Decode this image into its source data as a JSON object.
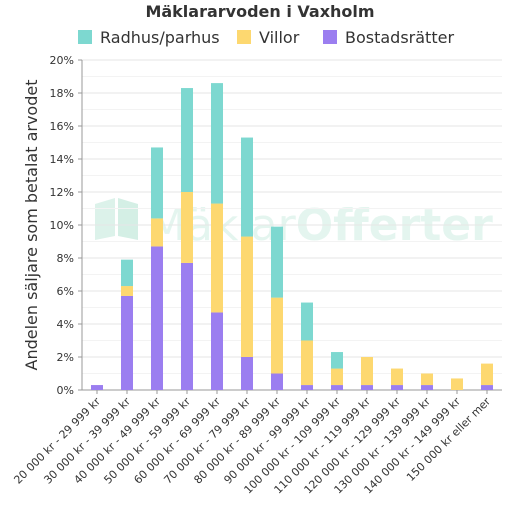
{
  "watermark": {
    "text_light": "Mäklar",
    "text_bold": "Offerter"
  },
  "chart_data": {
    "type": "bar",
    "stacked": true,
    "title": "Mäklararvoden i Vaxholm",
    "xlabel": "",
    "ylabel": "Andelen säljare som betalat arvodet",
    "ylim": [
      0,
      20
    ],
    "ytick_labels": [
      "0%",
      "2%",
      "4%",
      "6%",
      "8%",
      "10%",
      "12%",
      "14%",
      "16%",
      "18%",
      "20%"
    ],
    "grid": true,
    "legend_position": "top",
    "categories": [
      "20 000 kr - 29 999 kr",
      "30 000 kr - 39 999 kr",
      "40 000 kr - 49 999 kr",
      "50 000 kr - 59 999 kr",
      "60 000 kr - 69 999 kr",
      "70 000 kr - 79 999 kr",
      "80 000 kr - 89 999 kr",
      "90 000 kr - 99 999 kr",
      "100 000 kr - 109 999 kr",
      "110 000 kr - 119 999 kr",
      "120 000 kr - 129 999 kr",
      "130 000 kr - 139 999 kr",
      "140 000 kr - 149 999 kr",
      "150 000 kr eller mer"
    ],
    "series": [
      {
        "name": "Bostadsrätter",
        "color": "#9b7ef0",
        "values": [
          0.3,
          5.7,
          8.7,
          7.7,
          4.7,
          2.0,
          1.0,
          0.3,
          0.3,
          0.3,
          0.3,
          0.3,
          0.0,
          0.3
        ]
      },
      {
        "name": "Villor",
        "color": "#fdd870",
        "values": [
          0.0,
          0.6,
          1.7,
          4.3,
          6.6,
          7.3,
          4.6,
          2.7,
          1.0,
          1.7,
          1.0,
          0.7,
          0.7,
          1.3
        ]
      },
      {
        "name": "Radhus/parhus",
        "color": "#7dd8d0",
        "values": [
          0.0,
          1.6,
          4.3,
          6.3,
          7.3,
          6.0,
          4.3,
          2.3,
          1.0,
          0.0,
          0.0,
          0.0,
          0.0,
          0.0
        ]
      }
    ],
    "legend_order": [
      "Radhus/parhus",
      "Villor",
      "Bostadsrätter"
    ]
  }
}
